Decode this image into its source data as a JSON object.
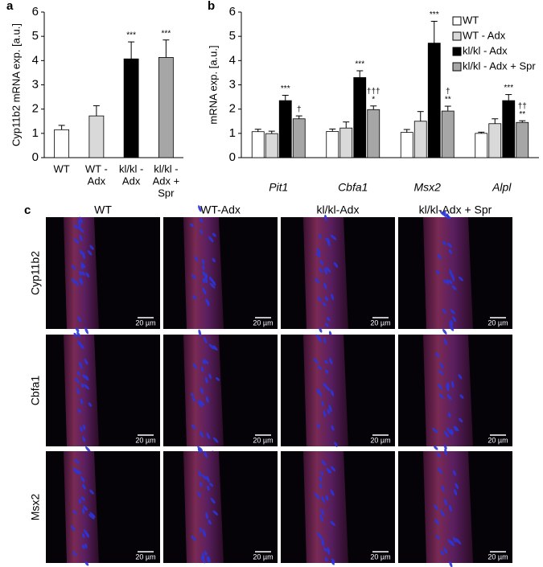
{
  "chart_data": [
    {
      "type": "bar",
      "panel_label": "a",
      "ylabel": "Cyp11b2 mRNA exp. [a.u.]",
      "categories": [
        [
          "WT"
        ],
        [
          "WT -",
          "Adx"
        ],
        [
          "kl/kl -",
          "Adx"
        ],
        [
          "kl/kl -",
          "Adx +",
          "Spr"
        ]
      ],
      "values": [
        1.15,
        1.72,
        4.07,
        4.13
      ],
      "errors": [
        0.18,
        0.42,
        0.7,
        0.72
      ],
      "significance": [
        null,
        null,
        [
          "***"
        ],
        [
          "***"
        ]
      ],
      "colors": [
        "#ffffff",
        "#d9d9d9",
        "#000000",
        "#a6a6a6"
      ],
      "ylim": [
        0,
        6
      ],
      "yticks": [
        0,
        1,
        2,
        3,
        4,
        5,
        6
      ]
    },
    {
      "type": "bar",
      "panel_label": "b",
      "ylabel": "mRNA exp. [a.u.]",
      "categories": [
        "Pit1",
        "Cbfa1",
        "Msx2",
        "Alpl"
      ],
      "series": [
        {
          "name": "WT",
          "color": "#ffffff",
          "values": [
            1.07,
            1.08,
            1.04,
            1.0
          ],
          "errors": [
            0.1,
            0.1,
            0.12,
            0.05
          ],
          "significance": [
            null,
            null,
            null,
            null
          ]
        },
        {
          "name": "WT - Adx",
          "color": "#d9d9d9",
          "values": [
            0.99,
            1.22,
            1.5,
            1.4
          ],
          "errors": [
            0.1,
            0.25,
            0.4,
            0.2
          ],
          "significance": [
            null,
            null,
            null,
            null
          ]
        },
        {
          "name": "kl/kl - Adx",
          "color": "#000000",
          "values": [
            2.35,
            3.3,
            4.72,
            2.35
          ],
          "errors": [
            0.22,
            0.28,
            0.9,
            0.25
          ],
          "significance": [
            [
              "***"
            ],
            [
              "***"
            ],
            [
              "***"
            ],
            [
              "***"
            ]
          ]
        },
        {
          "name": "kl/kl - Adx + Spr",
          "color": "#a6a6a6",
          "values": [
            1.6,
            1.98,
            1.92,
            1.45
          ],
          "errors": [
            0.12,
            0.15,
            0.2,
            0.07
          ],
          "significance": [
            [
              "†"
            ],
            [
              "†††",
              "*"
            ],
            [
              "†",
              "**"
            ],
            [
              "††",
              "**"
            ]
          ]
        }
      ],
      "ylim": [
        0,
        6
      ],
      "yticks": [
        0,
        1,
        2,
        3,
        4,
        5,
        6
      ],
      "legend": "top-right"
    }
  ],
  "micrographs": {
    "panel_label": "c",
    "columns": [
      "WT",
      "WT-Adx",
      "kl/kl-Adx",
      "kl/kl-Adx + Spr"
    ],
    "rows": [
      "Cyp11b2",
      "Cbfa1",
      "Msx2"
    ],
    "scale_bar": "20 µm"
  }
}
